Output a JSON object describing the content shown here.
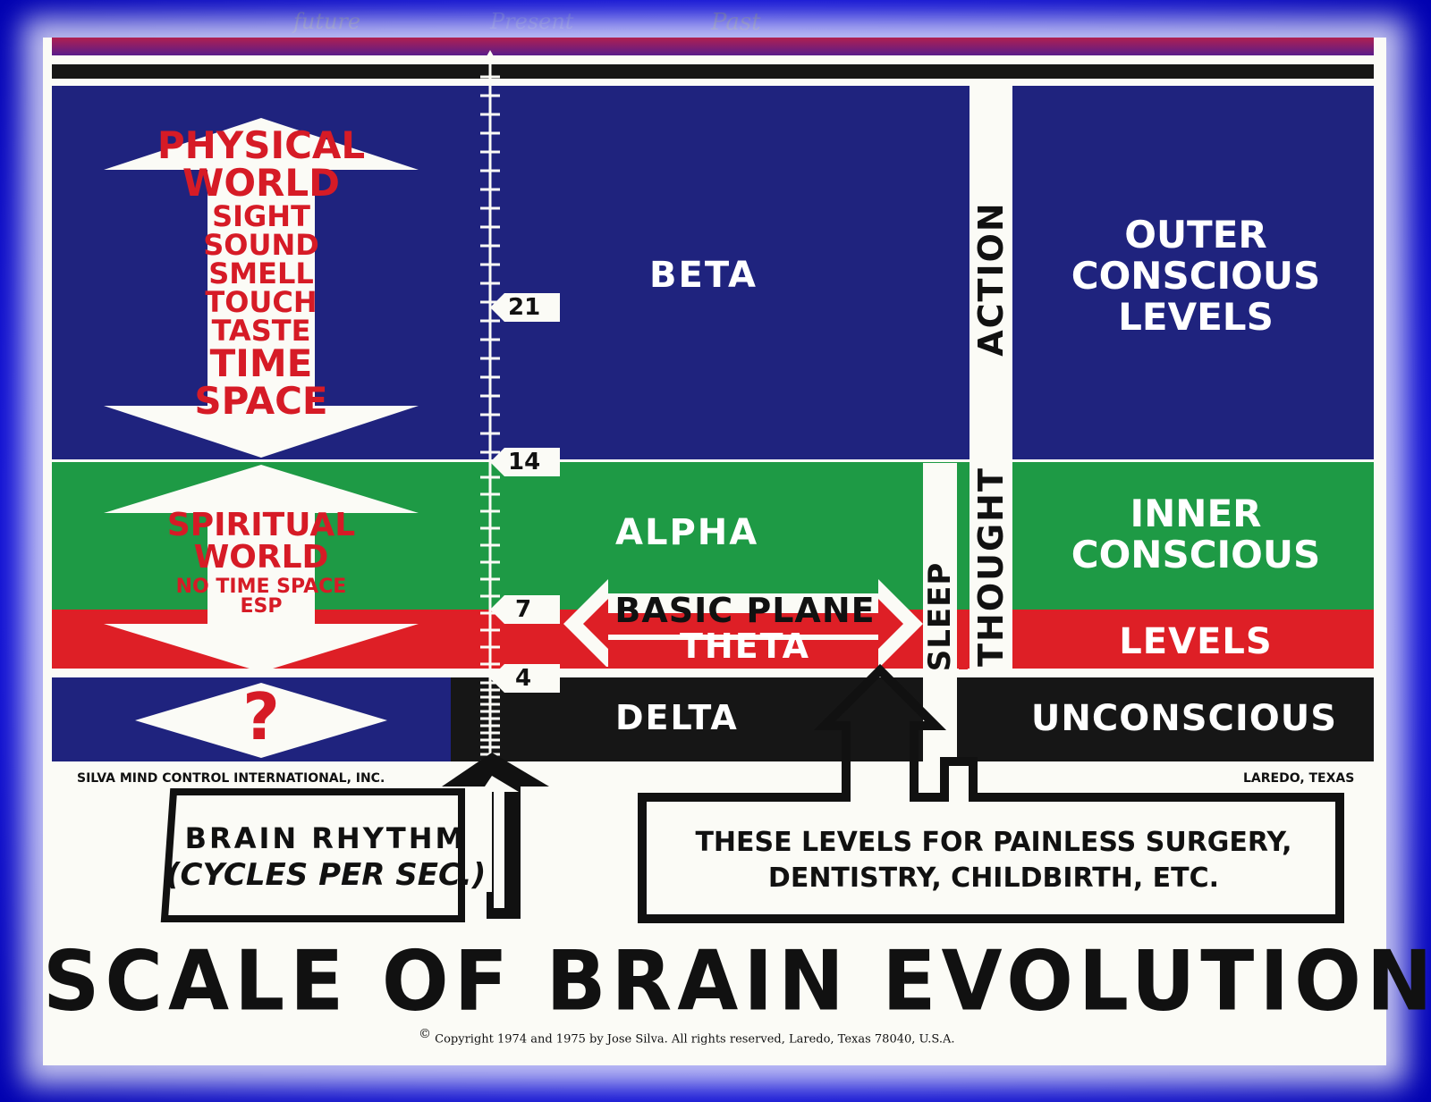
{
  "handwriting": {
    "future": "future",
    "present": "Present",
    "past": "Past"
  },
  "physical": {
    "lines": [
      "PHYSICAL",
      "WORLD",
      "SIGHT",
      "SOUND",
      "SMELL",
      "TOUCH",
      "TASTE",
      "TIME",
      "SPACE"
    ]
  },
  "spiritual": {
    "lines": [
      "SPIRITUAL",
      "WORLD",
      "NO TIME SPACE",
      "ESP"
    ]
  },
  "question_mark": "?",
  "scale_numbers": {
    "n21": "21",
    "n14": "14",
    "n7": "7",
    "n4": "4"
  },
  "bands": {
    "beta": "BETA",
    "alpha": "ALPHA",
    "basic_plane": "BASIC PLANE",
    "theta": "THETA",
    "delta": "DELTA"
  },
  "vertical": {
    "action": "ACTION",
    "thought": "THOUGHT",
    "sleep": "SLEEP"
  },
  "levels": {
    "outer": [
      "OUTER",
      "CONSCIOUS",
      "LEVELS"
    ],
    "inner": [
      "INNER",
      "CONSCIOUS"
    ],
    "levels_word": "LEVELS",
    "unconscious": "UNCONSCIOUS"
  },
  "publisher": {
    "left": "SILVA MIND CONTROL INTERNATIONAL, INC.",
    "right": "LAREDO, TEXAS"
  },
  "brain_rhythm": {
    "line1": "BRAIN RHYTHM",
    "line2": "(CYCLES PER SEC.)"
  },
  "painless": {
    "line1": "THESE LEVELS FOR PAINLESS SURGERY,",
    "line2": "DENTISTRY, CHILDBIRTH, ETC."
  },
  "title": "SCALE OF BRAIN EVOLUTION",
  "copyright": {
    "symbol": "©",
    "text": "Copyright 1974 and 1975 by Jose Silva.  All rights reserved, Laredo, Texas 78040, U.S.A."
  },
  "colors": {
    "blue": "#1f237e",
    "green": "#1e9a45",
    "red": "#de1f26",
    "black": "#161616",
    "frame": "#1414e0"
  }
}
